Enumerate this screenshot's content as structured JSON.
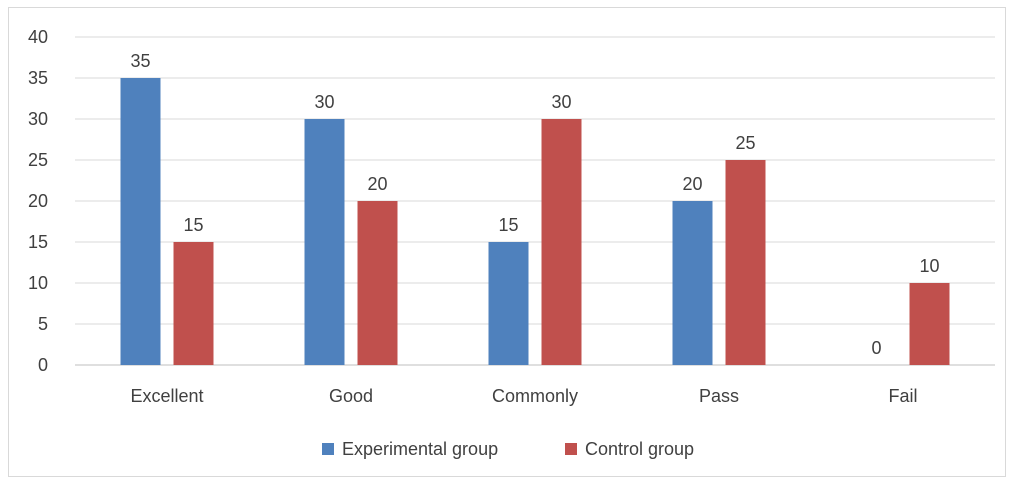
{
  "chart_data": {
    "type": "bar",
    "categories": [
      "Excellent",
      "Good",
      "Commonly",
      "Pass",
      "Fail"
    ],
    "series": [
      {
        "name": "Experimental group",
        "values": [
          35,
          30,
          15,
          20,
          0
        ],
        "color": "#4f81bd"
      },
      {
        "name": "Control group",
        "values": [
          15,
          20,
          30,
          25,
          10
        ],
        "color": "#c0504d"
      }
    ],
    "ylim": [
      0,
      40
    ],
    "yticks": [
      0,
      5,
      10,
      15,
      20,
      25,
      30,
      35,
      40
    ],
    "grid": true,
    "legend_position": "bottom",
    "title": "",
    "xlabel": "",
    "ylabel": ""
  }
}
